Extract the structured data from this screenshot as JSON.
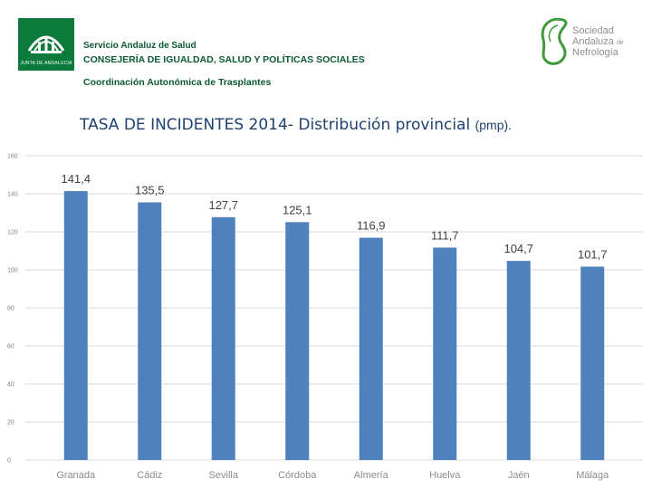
{
  "header": {
    "junta_logo_text": "JUNTA DE ANDALUCIA",
    "servicio": "Servicio Andaluz de Salud",
    "consejeria": "CONSEJERÍA DE IGUALDAD, SALUD Y POLÍTICAS SOCIALES",
    "coordinacion": "Coordinación Autonómica de Trasplantes",
    "sen_line1": "Sociedad",
    "sen_line2": "Andaluza",
    "sen_de": "de",
    "sen_line3": "Nefrología"
  },
  "colors": {
    "bar": "#4f81bd",
    "header_green": "#0b5a34",
    "title": "#1f3f6e"
  },
  "chart_data": {
    "type": "bar",
    "title": "TASA DE INCIDENTES 2014- Distribución provincial",
    "title_unit": "(pmp).",
    "categories": [
      "Granada",
      "Cádiz",
      "Sevilla",
      "Córdoba",
      "Almería",
      "Huelva",
      "Jaén",
      "Málaga"
    ],
    "values": [
      141.4,
      135.5,
      127.7,
      125.1,
      116.9,
      111.7,
      104.7,
      101.7
    ],
    "data_labels": [
      "141,4",
      "135,5",
      "127,7",
      "125,1",
      "116,9",
      "111,7",
      "104,7",
      "101,7"
    ],
    "yticks": [
      "0",
      "20",
      "40",
      "60",
      "80",
      "100",
      "120",
      "140",
      "160"
    ],
    "ylim": [
      0,
      160
    ],
    "grid": true,
    "legend": "none"
  }
}
